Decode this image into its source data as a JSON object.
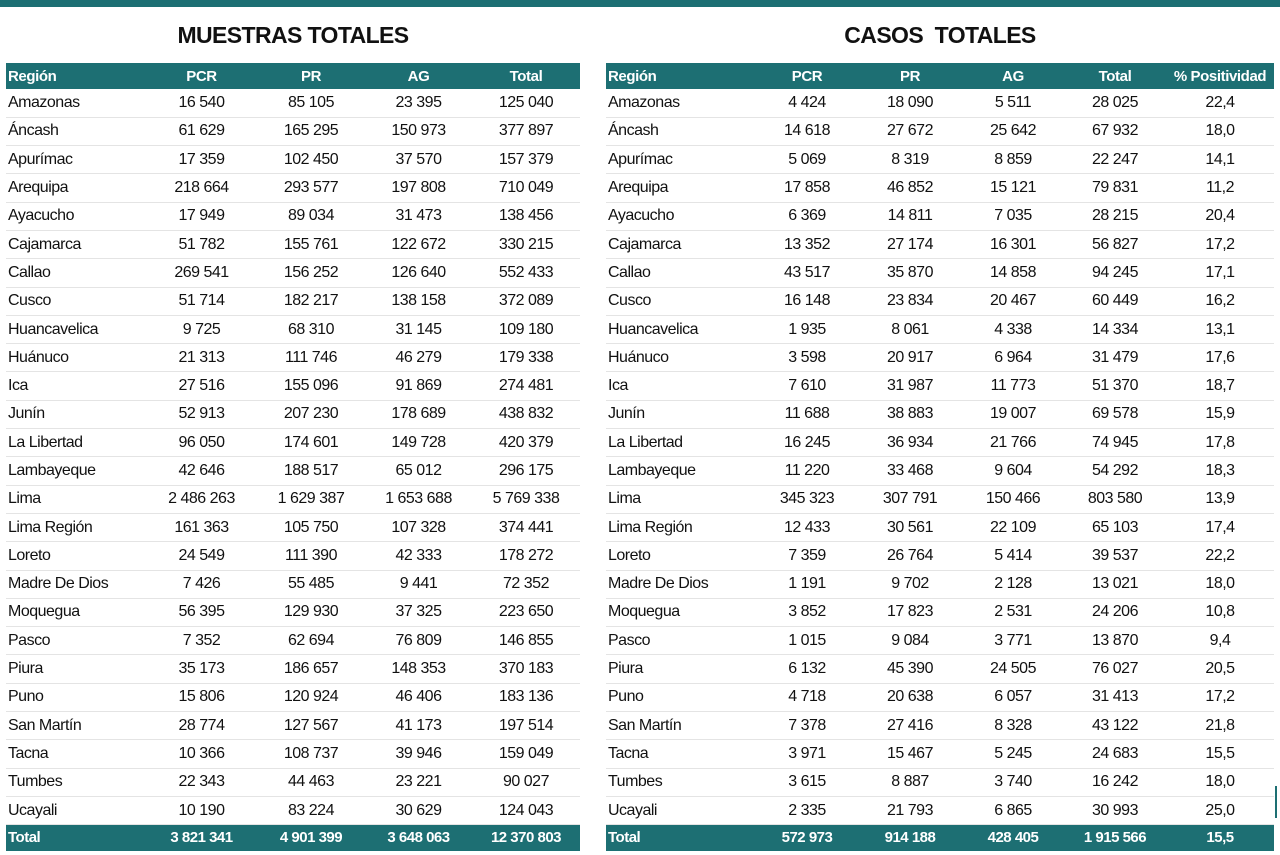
{
  "colors": {
    "header_bg": "#1d6f73",
    "header_text": "#ffffff",
    "text": "#111111"
  },
  "muestras": {
    "title": "MUESTRAS TOTALES",
    "headers": [
      "Región",
      "PCR",
      "PR",
      "AG",
      "Total"
    ],
    "rows": [
      [
        "Amazonas",
        "16 540",
        "85 105",
        "23 395",
        "125 040"
      ],
      [
        "Áncash",
        "61 629",
        "165 295",
        "150 973",
        "377 897"
      ],
      [
        "Apurímac",
        "17 359",
        "102 450",
        "37 570",
        "157 379"
      ],
      [
        "Arequipa",
        "218 664",
        "293 577",
        "197 808",
        "710 049"
      ],
      [
        "Ayacucho",
        "17 949",
        "89 034",
        "31 473",
        "138 456"
      ],
      [
        "Cajamarca",
        "51 782",
        "155 761",
        "122 672",
        "330 215"
      ],
      [
        "Callao",
        "269 541",
        "156 252",
        "126 640",
        "552 433"
      ],
      [
        "Cusco",
        "51 714",
        "182 217",
        "138 158",
        "372 089"
      ],
      [
        "Huancavelica",
        "9 725",
        "68 310",
        "31 145",
        "109 180"
      ],
      [
        "Huánuco",
        "21 313",
        "111 746",
        "46 279",
        "179 338"
      ],
      [
        "Ica",
        "27 516",
        "155 096",
        "91 869",
        "274 481"
      ],
      [
        "Junín",
        "52 913",
        "207 230",
        "178 689",
        "438 832"
      ],
      [
        "La Libertad",
        "96 050",
        "174 601",
        "149 728",
        "420 379"
      ],
      [
        "Lambayeque",
        "42 646",
        "188 517",
        "65 012",
        "296 175"
      ],
      [
        "Lima",
        "2 486 263",
        "1 629 387",
        "1 653 688",
        "5 769 338"
      ],
      [
        "Lima Región",
        "161 363",
        "105 750",
        "107 328",
        "374 441"
      ],
      [
        "Loreto",
        "24 549",
        "111 390",
        "42 333",
        "178 272"
      ],
      [
        "Madre De Dios",
        "7 426",
        "55 485",
        "9 441",
        "72 352"
      ],
      [
        "Moquegua",
        "56 395",
        "129 930",
        "37 325",
        "223 650"
      ],
      [
        "Pasco",
        "7 352",
        "62 694",
        "76 809",
        "146 855"
      ],
      [
        "Piura",
        "35 173",
        "186 657",
        "148 353",
        "370 183"
      ],
      [
        "Puno",
        "15 806",
        "120 924",
        "46 406",
        "183 136"
      ],
      [
        "San Martín",
        "28 774",
        "127 567",
        "41 173",
        "197 514"
      ],
      [
        "Tacna",
        "10 366",
        "108 737",
        "39 946",
        "159 049"
      ],
      [
        "Tumbes",
        "22 343",
        "44 463",
        "23 221",
        "90 027"
      ],
      [
        "Ucayali",
        "10 190",
        "83 224",
        "30 629",
        "124 043"
      ]
    ],
    "total": [
      "Total",
      "3 821 341",
      "4 901 399",
      "3 648 063",
      "12 370 803"
    ]
  },
  "casos": {
    "title": "CASOS  TOTALES",
    "headers": [
      "Región",
      "PCR",
      "PR",
      "AG",
      "Total",
      "% Positividad"
    ],
    "rows": [
      [
        "Amazonas",
        "4 424",
        "18 090",
        "5 511",
        "28 025",
        "22,4"
      ],
      [
        "Áncash",
        "14 618",
        "27 672",
        "25 642",
        "67 932",
        "18,0"
      ],
      [
        "Apurímac",
        "5 069",
        "8 319",
        "8 859",
        "22 247",
        "14,1"
      ],
      [
        "Arequipa",
        "17 858",
        "46 852",
        "15 121",
        "79 831",
        "11,2"
      ],
      [
        "Ayacucho",
        "6 369",
        "14 811",
        "7 035",
        "28 215",
        "20,4"
      ],
      [
        "Cajamarca",
        "13 352",
        "27 174",
        "16 301",
        "56 827",
        "17,2"
      ],
      [
        "Callao",
        "43 517",
        "35 870",
        "14 858",
        "94 245",
        "17,1"
      ],
      [
        "Cusco",
        "16 148",
        "23 834",
        "20 467",
        "60 449",
        "16,2"
      ],
      [
        "Huancavelica",
        "1 935",
        "8 061",
        "4 338",
        "14 334",
        "13,1"
      ],
      [
        "Huánuco",
        "3 598",
        "20 917",
        "6 964",
        "31 479",
        "17,6"
      ],
      [
        "Ica",
        "7 610",
        "31 987",
        "11 773",
        "51 370",
        "18,7"
      ],
      [
        "Junín",
        "11 688",
        "38 883",
        "19 007",
        "69 578",
        "15,9"
      ],
      [
        "La Libertad",
        "16 245",
        "36 934",
        "21 766",
        "74 945",
        "17,8"
      ],
      [
        "Lambayeque",
        "11 220",
        "33 468",
        "9 604",
        "54 292",
        "18,3"
      ],
      [
        "Lima",
        "345 323",
        "307 791",
        "150 466",
        "803 580",
        "13,9"
      ],
      [
        "Lima Región",
        "12 433",
        "30 561",
        "22 109",
        "65 103",
        "17,4"
      ],
      [
        "Loreto",
        "7 359",
        "26 764",
        "5 414",
        "39 537",
        "22,2"
      ],
      [
        "Madre De Dios",
        "1 191",
        "9 702",
        "2 128",
        "13 021",
        "18,0"
      ],
      [
        "Moquegua",
        "3 852",
        "17 823",
        "2 531",
        "24 206",
        "10,8"
      ],
      [
        "Pasco",
        "1 015",
        "9 084",
        "3 771",
        "13 870",
        "9,4"
      ],
      [
        "Piura",
        "6 132",
        "45 390",
        "24 505",
        "76 027",
        "20,5"
      ],
      [
        "Puno",
        "4 718",
        "20 638",
        "6 057",
        "31 413",
        "17,2"
      ],
      [
        "San Martín",
        "7 378",
        "27 416",
        "8 328",
        "43 122",
        "21,8"
      ],
      [
        "Tacna",
        "3 971",
        "15 467",
        "5 245",
        "24 683",
        "15,5"
      ],
      [
        "Tumbes",
        "3 615",
        "8 887",
        "3 740",
        "16 242",
        "18,0"
      ],
      [
        "Ucayali",
        "2 335",
        "21 793",
        "6 865",
        "30 993",
        "25,0"
      ]
    ],
    "total": [
      "Total",
      "572 973",
      "914 188",
      "428 405",
      "1 915 566",
      "15,5"
    ]
  }
}
